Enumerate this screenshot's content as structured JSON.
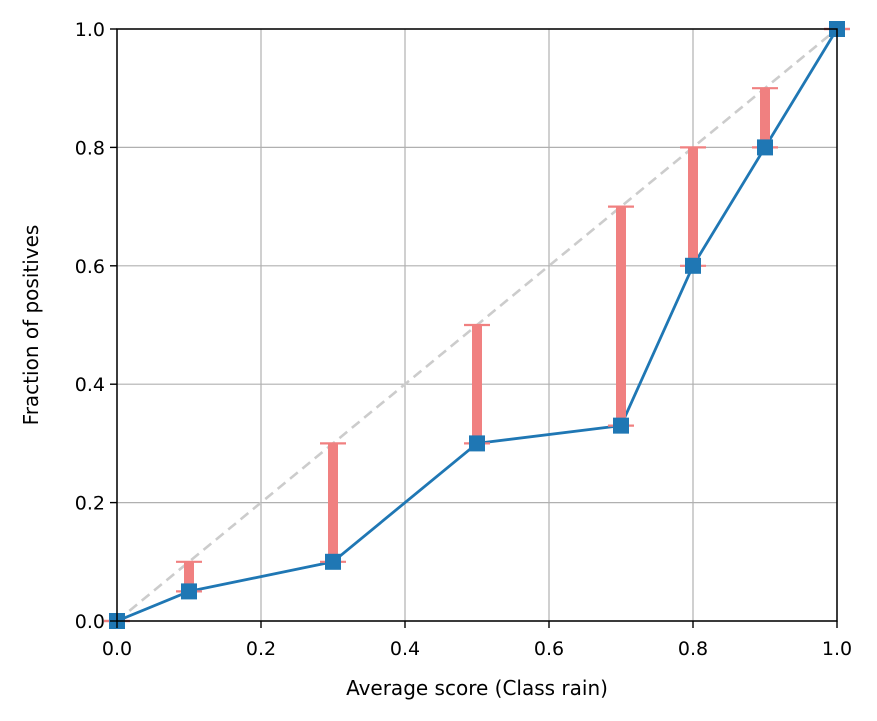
{
  "chart_data": {
    "type": "line",
    "xlabel": "Average score (Class rain)",
    "ylabel": "Fraction of positives",
    "xlim": [
      0.0,
      1.0
    ],
    "ylim": [
      0.0,
      1.0
    ],
    "grid": true,
    "x_ticks": [
      "0.0",
      "0.2",
      "0.4",
      "0.6",
      "0.8",
      "1.0"
    ],
    "y_ticks": [
      "0.0",
      "0.2",
      "0.4",
      "0.6",
      "0.8",
      "1.0"
    ],
    "reference_line": {
      "x": [
        0.0,
        1.0
      ],
      "y": [
        0.0,
        1.0
      ],
      "style": "dashed",
      "color": "#cccccc"
    },
    "series": [
      {
        "x": [
          0.0,
          0.1,
          0.3,
          0.5,
          0.7,
          0.8,
          0.9,
          1.0
        ],
        "y": [
          0.0,
          0.05,
          0.1,
          0.3,
          0.33,
          0.6,
          0.8,
          1.0
        ],
        "color": "#1f77b4",
        "marker": "square"
      }
    ],
    "gap_bars": {
      "color": "#f08080",
      "x": [
        0.0,
        0.1,
        0.3,
        0.5,
        0.7,
        0.8,
        0.9,
        1.0
      ],
      "lower": [
        0.0,
        0.05,
        0.1,
        0.3,
        0.33,
        0.6,
        0.8,
        1.0
      ],
      "upper": [
        0.0,
        0.1,
        0.3,
        0.5,
        0.7,
        0.8,
        0.9,
        1.0
      ]
    }
  }
}
